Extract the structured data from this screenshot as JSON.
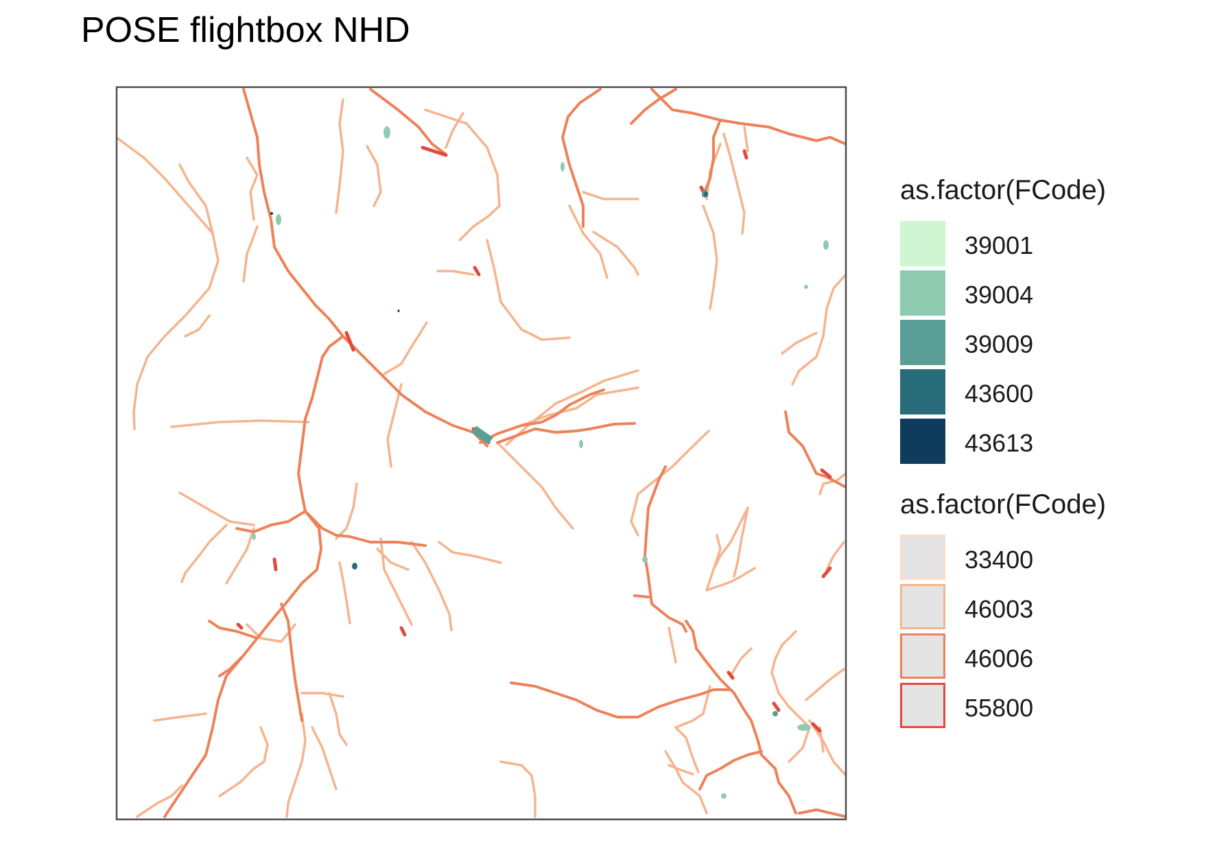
{
  "map": {
    "title": "POSE flightbox NHD",
    "colors": {
      "frame": "#4d4d4d",
      "background": "#ffffff"
    }
  },
  "legends": [
    {
      "title": "as.factor(FCode)",
      "kind": "polygon-fill",
      "entries": [
        {
          "label": "39001",
          "fill": "#cff5d3"
        },
        {
          "label": "39004",
          "fill": "#8ecbb1"
        },
        {
          "label": "39009",
          "fill": "#5a9e97"
        },
        {
          "label": "43600",
          "fill": "#286c79"
        },
        {
          "label": "43613",
          "fill": "#0f3c5c"
        }
      ]
    },
    {
      "title": "as.factor(FCode)",
      "kind": "flowline-color",
      "entries": [
        {
          "label": "33400",
          "stroke": "#fbdcc6",
          "fill": "#e4e4e4"
        },
        {
          "label": "46003",
          "stroke": "#f5b48d",
          "fill": "#e4e4e4"
        },
        {
          "label": "46006",
          "stroke": "#ec8259",
          "fill": "#e4e4e4"
        },
        {
          "label": "55800",
          "stroke": "#df4a3c",
          "fill": "#e4e4e4"
        }
      ]
    }
  ]
}
